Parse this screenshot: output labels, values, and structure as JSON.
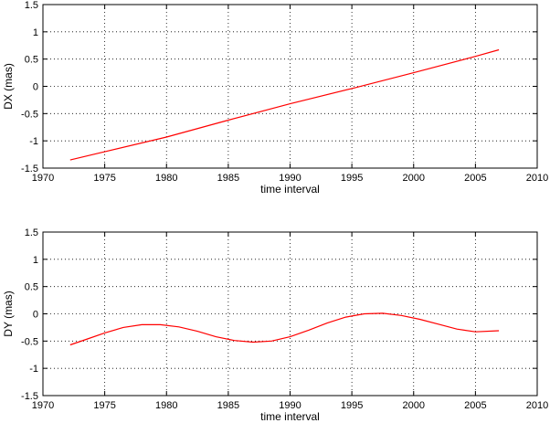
{
  "chart_data": [
    {
      "type": "line",
      "title": "",
      "xlabel": "time interval",
      "ylabel": "DX (mas)",
      "xlim": [
        1970,
        2010
      ],
      "ylim": [
        -1.5,
        1.5
      ],
      "xticks": [
        1970,
        1975,
        1980,
        1985,
        1990,
        1995,
        2000,
        2005,
        2010
      ],
      "yticks": [
        -1.5,
        -1,
        -0.5,
        0,
        0.5,
        1,
        1.5
      ],
      "grid": true,
      "series": [
        {
          "color": "#ff0000",
          "x": [
            1972.2,
            1975,
            1980,
            1985,
            1990,
            1995,
            2000,
            2005,
            2006.9
          ],
          "y": [
            -1.35,
            -1.2,
            -0.93,
            -0.62,
            -0.32,
            -0.04,
            0.25,
            0.55,
            0.67
          ]
        }
      ]
    },
    {
      "type": "line",
      "title": "",
      "xlabel": "time interval",
      "ylabel": "DY (mas)",
      "xlim": [
        1970,
        2010
      ],
      "ylim": [
        -1.5,
        1.5
      ],
      "xticks": [
        1970,
        1975,
        1980,
        1985,
        1990,
        1995,
        2000,
        2005,
        2010
      ],
      "yticks": [
        -1.5,
        -1,
        -0.5,
        0,
        0.5,
        1,
        1.5
      ],
      "grid": true,
      "series": [
        {
          "color": "#ff0000",
          "x": [
            1972.2,
            1973.5,
            1975,
            1976.5,
            1978,
            1979.5,
            1981,
            1982.5,
            1984,
            1985.5,
            1987,
            1988.5,
            1990,
            1991.5,
            1993,
            1994.5,
            1996,
            1997.5,
            1999,
            2000.5,
            2002,
            2003.5,
            2005,
            2006.9
          ],
          "y": [
            -0.57,
            -0.47,
            -0.35,
            -0.25,
            -0.2,
            -0.2,
            -0.24,
            -0.32,
            -0.42,
            -0.49,
            -0.52,
            -0.5,
            -0.42,
            -0.3,
            -0.17,
            -0.06,
            0.0,
            0.01,
            -0.03,
            -0.1,
            -0.19,
            -0.28,
            -0.33,
            -0.31
          ]
        }
      ]
    }
  ]
}
